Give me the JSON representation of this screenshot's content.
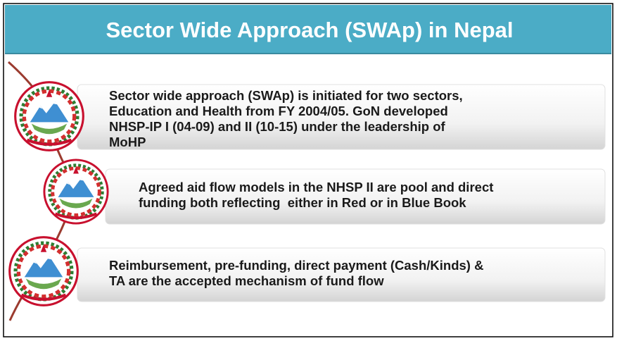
{
  "title": "Sector Wide Approach (SWAp) in Nepal",
  "items": [
    {
      "lines": [
        "Sector wide approach (SWAp) is initiated for two sectors,",
        "Education and Health from FY 2004/05. GoN developed",
        "NHSP-IP I (04-09) and II (10-15) under the leadership of",
        "MoHP"
      ]
    },
    {
      "lines": [
        "Agreed aid flow models in the NHSP II are pool and direct",
        "funding both reflecting  either in Red or in Blue Book"
      ]
    },
    {
      "lines": [
        "Reimbursement, pre-funding, direct payment (Cash/Kinds) &",
        "TA are the accepted mechanism of fund flow"
      ]
    }
  ]
}
